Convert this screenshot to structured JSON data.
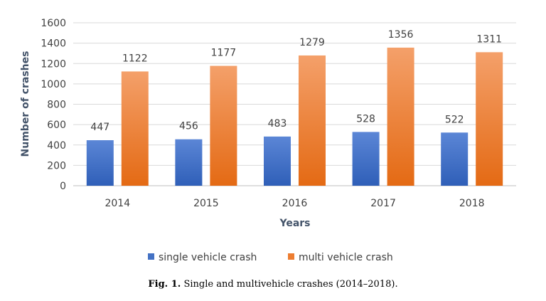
{
  "chart_data": {
    "type": "bar",
    "categories": [
      "2014",
      "2015",
      "2016",
      "2017",
      "2018"
    ],
    "series": [
      {
        "name": "single vehicle crash",
        "values": [
          447,
          456,
          483,
          528,
          522
        ],
        "color": "#4472c4"
      },
      {
        "name": "multi vehicle crash",
        "values": [
          1122,
          1177,
          1279,
          1356,
          1311
        ],
        "color": "#ed7d31"
      }
    ],
    "xlabel": "Years",
    "ylabel": "Number of crashes",
    "ylim": [
      0,
      1600
    ],
    "yticks": [
      0,
      200,
      400,
      600,
      800,
      1000,
      1200,
      1400,
      1600
    ],
    "grid": true,
    "legend_position": "bottom"
  },
  "caption": {
    "label": "Fig. 1.",
    "text": "Single and multivehicle crashes (2014–2018)."
  }
}
